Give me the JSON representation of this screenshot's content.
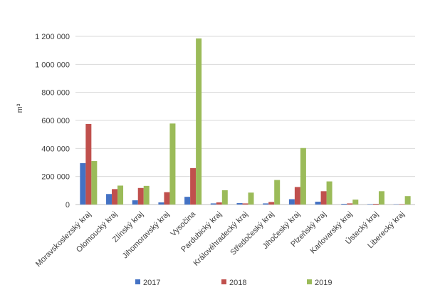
{
  "chart_data": {
    "type": "bar",
    "ylabel": "m³",
    "ylim": [
      0,
      1200000
    ],
    "yticks": [
      0,
      200000,
      400000,
      600000,
      800000,
      1000000,
      1200000
    ],
    "ytick_labels": [
      "0",
      "200 000",
      "400 000",
      "600 000",
      "800 000",
      "1 000 000",
      "1 200 000"
    ],
    "grid": true,
    "legend": "bottom",
    "categories": [
      "Moravskoslezský kraj",
      "Olomoucký kraj",
      "Zlínský kraj",
      "Jihomoravský kraj",
      "Vysočina",
      "Pardubický kraj",
      "Královéhradecký kraj",
      "Středočeský kraj",
      "Jihočeský kraj",
      "Plzeňský kraj",
      "Karlovarský kraj",
      "Ústecký kraj",
      "Liberecký kraj"
    ],
    "series": [
      {
        "name": "2017",
        "color": "#4472C4",
        "values": [
          295000,
          75000,
          30000,
          15000,
          55000,
          8000,
          10000,
          8000,
          38000,
          20000,
          5000,
          3000,
          2000
        ]
      },
      {
        "name": "2018",
        "color": "#C0504D",
        "values": [
          575000,
          110000,
          118000,
          88000,
          260000,
          15000,
          8000,
          18000,
          125000,
          95000,
          8000,
          5000,
          3000
        ]
      },
      {
        "name": "2019",
        "color": "#9BBB59",
        "values": [
          310000,
          135000,
          133000,
          578000,
          1185000,
          102000,
          85000,
          175000,
          403000,
          165000,
          35000,
          95000,
          60000
        ]
      }
    ]
  }
}
